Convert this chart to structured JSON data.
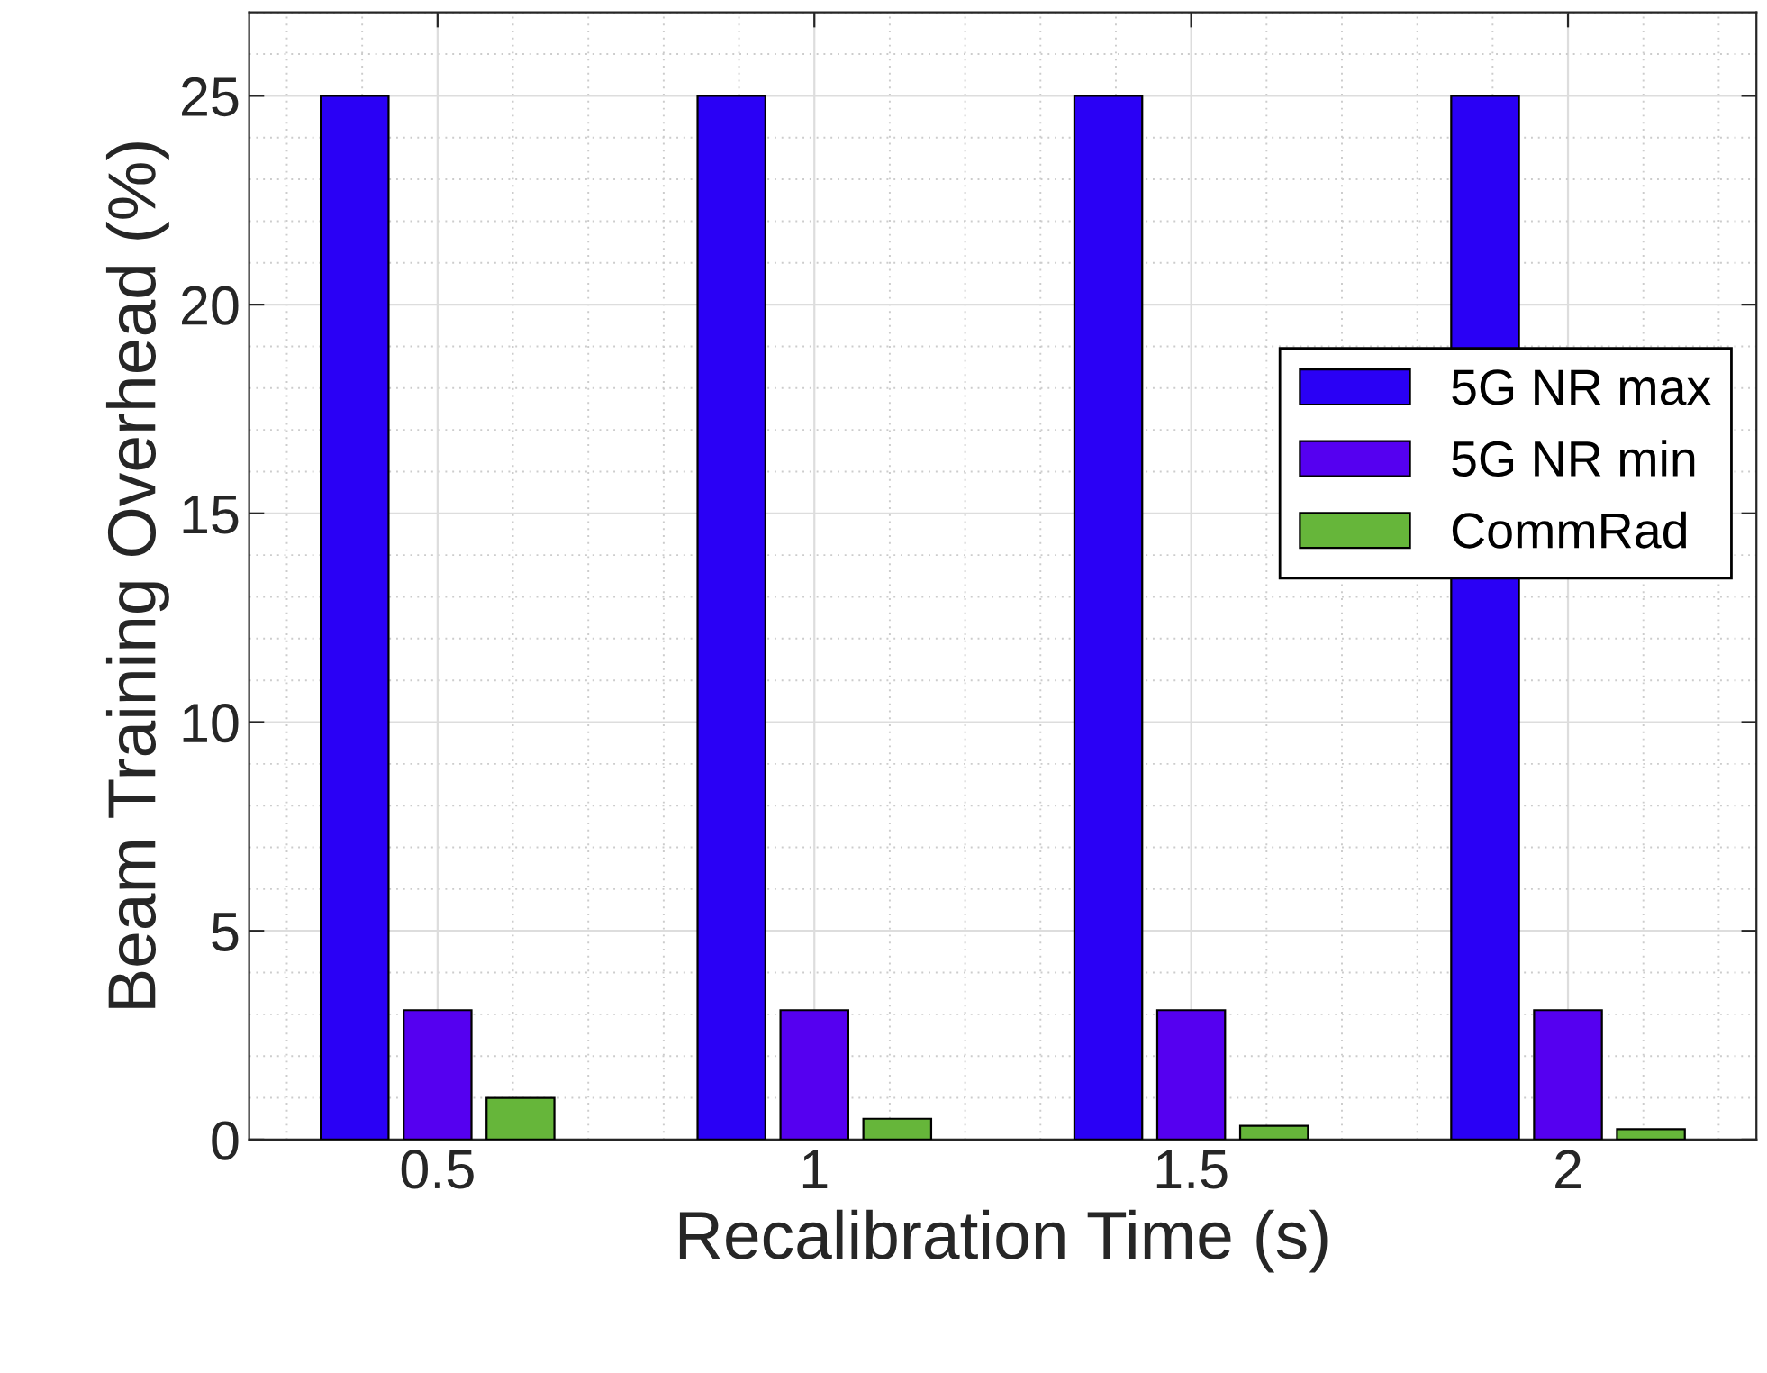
{
  "chart_data": {
    "type": "bar",
    "xlabel": "Recalibration Time (s)",
    "ylabel": "Beam Training Overhead (%)",
    "categories": [
      "0.5",
      "1",
      "1.5",
      "2"
    ],
    "series": [
      {
        "name": "5G NR max",
        "color": "#2a00f5",
        "values": [
          25,
          25,
          25,
          25
        ]
      },
      {
        "name": "5G NR min",
        "color": "#5500f0",
        "values": [
          3.1,
          3.1,
          3.1,
          3.1
        ]
      },
      {
        "name": "CommRad",
        "color": "#66b63a",
        "values": [
          1.0,
          0.5,
          0.33,
          0.25
        ]
      }
    ],
    "ylim": [
      0,
      27
    ],
    "yticks": [
      0,
      5,
      10,
      15,
      20,
      25
    ],
    "grid": true,
    "legend": "right"
  }
}
